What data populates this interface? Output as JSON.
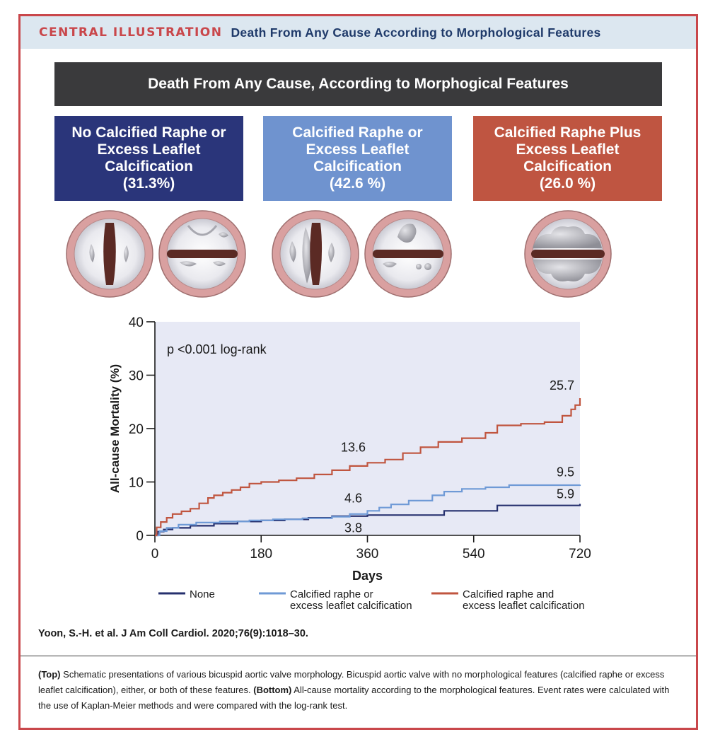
{
  "header": {
    "tag": "CENTRAL ILLUSTRATION",
    "title": "Death From Any Cause According to Morphological Features"
  },
  "banner": "Death From Any Cause, According to Morphogical Features",
  "groups": [
    {
      "line1": "No Calcified Raphe or",
      "line2": "Excess Leaflet",
      "line3": "Calcification",
      "pct": "(31.3%)"
    },
    {
      "line1": "Calcified Raphe or",
      "line2": "Excess Leaflet",
      "line3": "Calcification",
      "pct": "(42.6 %)"
    },
    {
      "line1": "Calcified Raphe Plus",
      "line2": "Excess Leaflet",
      "line3": "Calcification",
      "pct": "(26.0 %)"
    }
  ],
  "colors": {
    "none": "#26306e",
    "either": "#6f9ad6",
    "both": "#c0553f",
    "plot_bg": "#e7e9f5",
    "accent": "#c9474b"
  },
  "chart_data": {
    "type": "line",
    "title": "",
    "xlabel": "Days",
    "ylabel": "All-cause Mortality (%)",
    "xlim": [
      0,
      720
    ],
    "ylim": [
      0,
      40
    ],
    "xticks": [
      0,
      180,
      360,
      540,
      720
    ],
    "yticks": [
      0,
      10,
      20,
      30,
      40
    ],
    "annotation": "p <0.001 log-rank",
    "series": [
      {
        "name": "None",
        "color": "#26306e",
        "x": [
          0,
          5,
          15,
          30,
          60,
          100,
          140,
          180,
          220,
          260,
          300,
          360,
          420,
          490,
          580,
          720
        ],
        "y": [
          0,
          0.7,
          1.1,
          1.4,
          1.8,
          2.2,
          2.6,
          2.8,
          3.0,
          3.3,
          3.6,
          3.8,
          3.8,
          4.6,
          5.6,
          5.9
        ]
      },
      {
        "name": "Calcified raphe or excess leaflet calcification",
        "color": "#6f9ad6",
        "x": [
          0,
          8,
          20,
          40,
          70,
          110,
          160,
          200,
          250,
          300,
          330,
          360,
          380,
          400,
          430,
          470,
          490,
          520,
          560,
          600,
          720
        ],
        "y": [
          0,
          0.8,
          1.4,
          2.0,
          2.4,
          2.6,
          2.8,
          3.0,
          3.2,
          3.5,
          4.0,
          4.6,
          5.2,
          5.8,
          6.5,
          7.5,
          8.2,
          8.7,
          9.0,
          9.4,
          9.5
        ]
      },
      {
        "name": "Calcified raphe and excess leaflet calcification",
        "color": "#c0553f",
        "x": [
          0,
          3,
          10,
          20,
          30,
          45,
          60,
          75,
          90,
          100,
          115,
          130,
          145,
          160,
          180,
          210,
          240,
          270,
          300,
          330,
          360,
          390,
          420,
          450,
          480,
          520,
          560,
          580,
          620,
          660,
          690,
          705,
          712,
          720
        ],
        "y": [
          0,
          1.5,
          2.5,
          3.3,
          4.0,
          4.5,
          5.0,
          6.0,
          7.0,
          7.5,
          8.0,
          8.5,
          9.0,
          9.7,
          10.0,
          10.3,
          10.7,
          11.4,
          12.2,
          13.0,
          13.6,
          14.2,
          15.4,
          16.5,
          17.5,
          18.2,
          19.2,
          20.6,
          20.9,
          21.2,
          22.4,
          23.6,
          24.4,
          25.7
        ]
      }
    ],
    "data_labels": [
      {
        "text": "25.7",
        "series": 2,
        "x": 720,
        "y": 25.7
      },
      {
        "text": "13.6",
        "series": 2,
        "x": 360,
        "y": 13.6
      },
      {
        "text": "9.5",
        "series": 1,
        "x": 720,
        "y": 9.5
      },
      {
        "text": "5.9",
        "series": 0,
        "x": 720,
        "y": 5.9
      },
      {
        "text": "4.6",
        "series": 1,
        "x": 360,
        "y": 4.6
      },
      {
        "text": "3.8",
        "series": 0,
        "x": 360,
        "y": 3.8
      }
    ],
    "legend": [
      {
        "label_line1": "None",
        "label_line2": ""
      },
      {
        "label_line1": "Calcified raphe or",
        "label_line2": "excess leaflet calcification"
      },
      {
        "label_line1": "Calcified raphe and",
        "label_line2": "excess leaflet calcification"
      }
    ],
    "legend_position": "bottom"
  },
  "citation": "Yoon, S.-H. et al. J Am Coll Cardiol. 2020;76(9):1018–30.",
  "caption": {
    "top_label": "(Top)",
    "top_text": " Schematic presentations of various bicuspid aortic valve morphology. Bicuspid aortic valve with no morphological features (calcified raphe or excess leaflet calcification), either, or both of these features. ",
    "bottom_label": "(Bottom)",
    "bottom_text": " All-cause mortality according to the morphological features. Event rates were calculated with the use of Kaplan-Meier methods and were compared with the log-rank test."
  }
}
